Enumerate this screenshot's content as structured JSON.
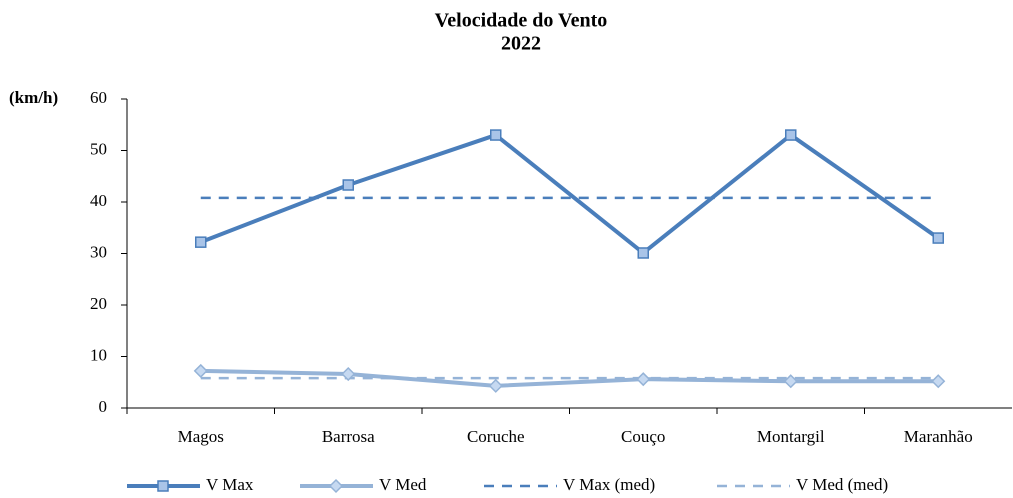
{
  "chart_data": {
    "type": "line",
    "title": [
      "Velocidade do Vento",
      "2022"
    ],
    "y_label": "(km/h)",
    "categories": [
      "Magos",
      "Barrosa",
      "Coruche",
      "Couço",
      "Montargil",
      "Maranhão"
    ],
    "series": [
      {
        "name": "V Max",
        "color": "#4a7ebb",
        "line_style": "solid",
        "marker": "square",
        "marker_fill": "#a9c4e8",
        "values": [
          32.2,
          43.3,
          53.0,
          30.1,
          53.0,
          33.0
        ]
      },
      {
        "name": "V Med",
        "color": "#95b3d7",
        "line_style": "solid",
        "marker": "diamond",
        "marker_fill": "#c6d9f1",
        "values": [
          7.2,
          6.6,
          4.3,
          5.6,
          5.2,
          5.2
        ]
      },
      {
        "name": "V Max (med)",
        "color": "#4a7ebb",
        "line_style": "dashed",
        "marker": "none",
        "values": [
          40.8,
          40.8,
          40.8,
          40.8,
          40.8,
          40.8
        ]
      },
      {
        "name": "V Med (med)",
        "color": "#95b3d7",
        "line_style": "dashed",
        "marker": "none",
        "values": [
          5.8,
          5.8,
          5.8,
          5.8,
          5.8,
          5.8
        ]
      }
    ],
    "ylim": [
      0,
      60
    ],
    "yticks": [
      0,
      10,
      20,
      30,
      40,
      50,
      60
    ],
    "grid": false
  }
}
